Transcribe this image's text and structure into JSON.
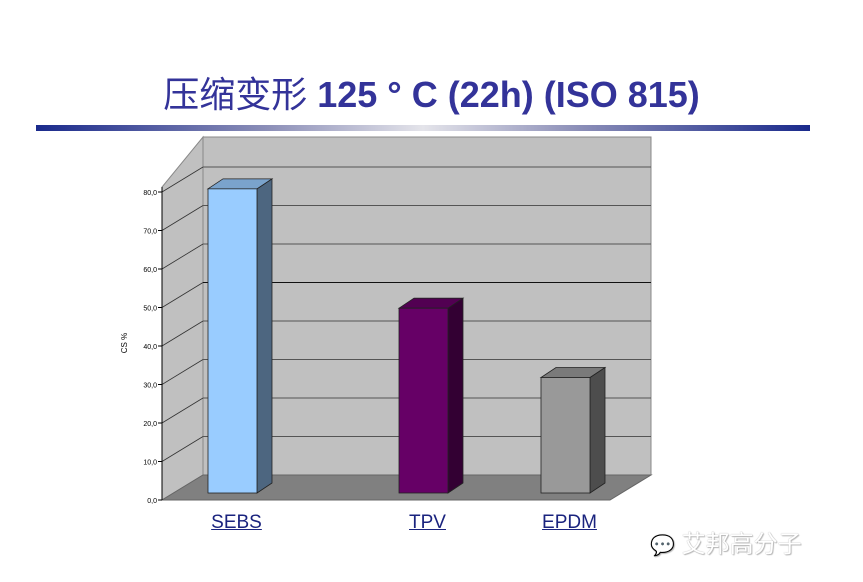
{
  "title_cn": "压缩变形",
  "title_rest": " 125 ° C (22h) (ISO 815)",
  "watermark": "艾邦高分子",
  "chart_data": {
    "type": "bar",
    "style": "3d-column",
    "categories": [
      "SEBS",
      "TPV",
      "EPDM"
    ],
    "values": [
      79,
      48,
      30
    ],
    "ylabel": "CS %",
    "xlabel": "",
    "ylim": [
      0,
      80
    ],
    "yticks": [
      "0,0",
      "10,0",
      "20,0",
      "30,0",
      "40,0",
      "50,0",
      "60,0",
      "70,0",
      "80,0"
    ],
    "grid": true,
    "colors": {
      "SEBS": "#99ccff",
      "TPV": "#660066",
      "EPDM": "#999999",
      "wall": "#c0c0c0",
      "floor": "#808080",
      "title": "#333399"
    }
  }
}
